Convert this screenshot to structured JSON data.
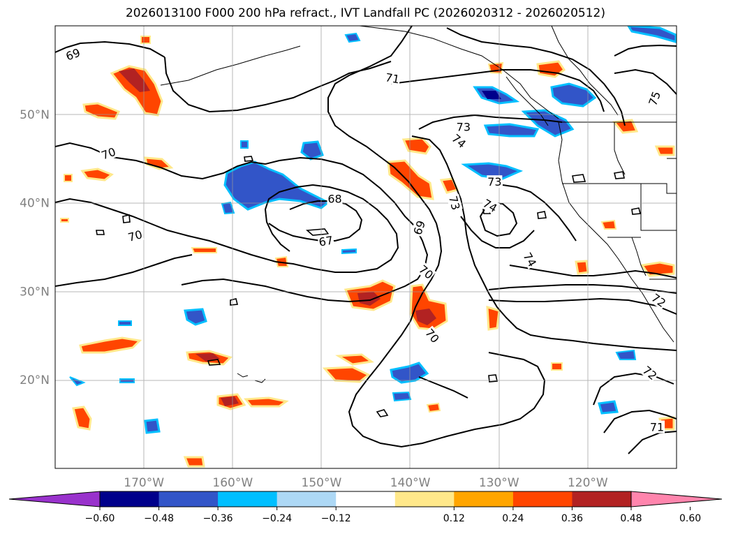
{
  "title": "2026013100 F000 200 hPa refract., IVT Landfall PC (2026020312 - 2026020512)",
  "map": {
    "lon_range": [
      -180,
      -110
    ],
    "lat_range": [
      10,
      60
    ],
    "lat_ticks": [
      {
        "value": 50,
        "label": "50°N"
      },
      {
        "value": 40,
        "label": "40°N"
      },
      {
        "value": 30,
        "label": "30°N"
      },
      {
        "value": 20,
        "label": "20°N"
      }
    ],
    "lon_ticks": [
      {
        "value": -170,
        "label": "170°W"
      },
      {
        "value": -160,
        "label": "160°W"
      },
      {
        "value": -150,
        "label": "150°W"
      },
      {
        "value": -140,
        "label": "140°W"
      },
      {
        "value": -130,
        "label": "130°W"
      },
      {
        "value": -120,
        "label": "120°W"
      }
    ],
    "contour_labels": [
      {
        "text": "69",
        "lon": -178,
        "lat": 56.8,
        "rot": 20
      },
      {
        "text": "71",
        "lon": -142,
        "lat": 54.1,
        "rot": -10
      },
      {
        "text": "75",
        "lon": -112.5,
        "lat": 51.8,
        "rot": 70
      },
      {
        "text": "73",
        "lon": -134,
        "lat": 48.6,
        "rot": 0
      },
      {
        "text": "74",
        "lon": -134.5,
        "lat": 47,
        "rot": -40
      },
      {
        "text": "73",
        "lon": -130.5,
        "lat": 42.4,
        "rot": 0
      },
      {
        "text": "70",
        "lon": -174,
        "lat": 45.6,
        "rot": 20
      },
      {
        "text": "68",
        "lon": -148.5,
        "lat": 40.5,
        "rot": 0
      },
      {
        "text": "73",
        "lon": -135,
        "lat": 40,
        "rot": -75
      },
      {
        "text": "74",
        "lon": -131,
        "lat": 39.7,
        "rot": -30
      },
      {
        "text": "69",
        "lon": -139,
        "lat": 37.2,
        "rot": 70
      },
      {
        "text": "70",
        "lon": -171,
        "lat": 36.3,
        "rot": 15
      },
      {
        "text": "67",
        "lon": -149.5,
        "lat": 35.7,
        "rot": 10
      },
      {
        "text": "74",
        "lon": -126.5,
        "lat": 33.6,
        "rot": -60
      },
      {
        "text": "70",
        "lon": -138.2,
        "lat": 32.2,
        "rot": -40
      },
      {
        "text": "72",
        "lon": -112,
        "lat": 29,
        "rot": -35
      },
      {
        "text": "70",
        "lon": -137.5,
        "lat": 25,
        "rot": -50
      },
      {
        "text": "72",
        "lon": -113,
        "lat": 20.8,
        "rot": -40
      },
      {
        "text": "71",
        "lon": -112.2,
        "lat": 14.7,
        "rot": 0
      }
    ]
  },
  "colorbar": {
    "ticks": [
      "−0.60",
      "−0.48",
      "−0.36",
      "−0.24",
      "−0.12",
      "0.12",
      "0.24",
      "0.36",
      "0.48",
      "0.60"
    ],
    "colors": [
      "#9932cc",
      "#00008b",
      "#3255c8",
      "#00bfff",
      "#add8f5",
      "#ffffff",
      "#ffe88a",
      "#ffa500",
      "#ff4500",
      "#b22222",
      "#ff85ad"
    ]
  }
}
